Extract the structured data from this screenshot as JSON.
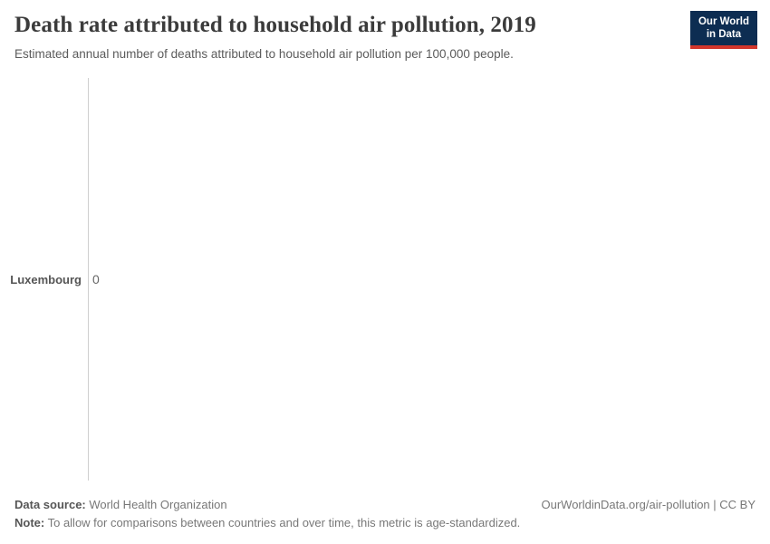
{
  "header": {
    "title": "Death rate attributed to household air pollution, 2019",
    "subtitle": "Estimated annual number of deaths attributed to household air pollution per 100,000 people.",
    "logo": {
      "line1": "Our World",
      "line2": "in Data",
      "bg_color": "#0d2d52",
      "accent_color": "#d2362c"
    }
  },
  "chart_data": {
    "type": "bar",
    "orientation": "horizontal",
    "categories": [
      "Luxembourg"
    ],
    "values": [
      0
    ],
    "value_labels": [
      "0"
    ],
    "title": "Death rate attributed to household air pollution, 2019",
    "xlabel": "",
    "ylabel": "",
    "xlim": [
      0,
      0
    ],
    "grid": false,
    "legend": false,
    "axis_color": "#cfcfcf"
  },
  "footer": {
    "data_source_label": "Data source:",
    "data_source_value": " World Health Organization",
    "attribution": "OurWorldinData.org/air-pollution | CC BY",
    "note_label": "Note:",
    "note_value": " To allow for comparisons between countries and over time, this metric is age-standardized."
  }
}
